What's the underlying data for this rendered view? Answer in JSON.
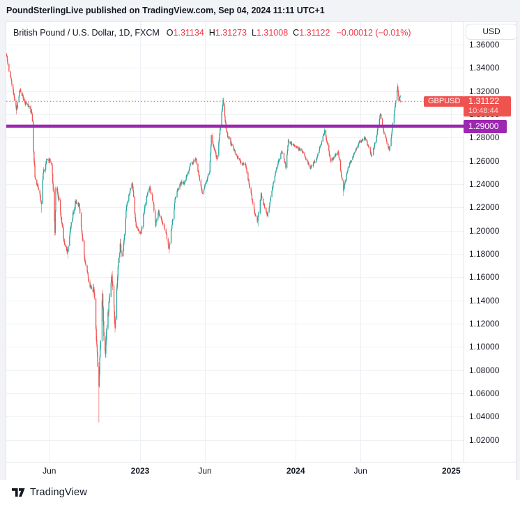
{
  "header": {
    "caption": "PoundSterlingLive published on TradingView.com, Sep 04, 2024 11:11 UTC+1"
  },
  "legend": {
    "title": "British Pound / U.S. Dollar, 1D, FXCM",
    "ohlc": [
      {
        "k": "O",
        "v": "1.31134"
      },
      {
        "k": "H",
        "v": "1.31273"
      },
      {
        "k": "L",
        "v": "1.31008"
      },
      {
        "k": "C",
        "v": "1.31122"
      }
    ],
    "change": "−0.00012 (−0.01%)"
  },
  "toolbar": {
    "currency_label": "USD"
  },
  "price_scale": {
    "tick_labels": [
      "1.36000",
      "1.34000",
      "1.32000",
      "1.30000",
      "1.28000",
      "1.26000",
      "1.24000",
      "1.22000",
      "1.20000",
      "1.18000",
      "1.16000",
      "1.14000",
      "1.12000",
      "1.10000",
      "1.08000",
      "1.06000",
      "1.04000",
      "1.02000"
    ],
    "current_price_label": "1.31122",
    "countdown": "10:48:44",
    "level_label": "1.29000"
  },
  "time_scale": {
    "labels": [
      {
        "text": "Jun",
        "date": "2022-06-01",
        "bold": false
      },
      {
        "text": "2023",
        "date": "2023-01-01",
        "bold": true
      },
      {
        "text": "Jun",
        "date": "2023-06-01",
        "bold": false
      },
      {
        "text": "2024",
        "date": "2024-01-01",
        "bold": true
      },
      {
        "text": "Jun",
        "date": "2024-06-01",
        "bold": false
      },
      {
        "text": "2025",
        "date": "2025-01-01",
        "bold": true
      }
    ]
  },
  "price_line_flag": "GBPUSD",
  "footer": {
    "brand": "TradingView"
  },
  "chart_data": {
    "type": "candlestick",
    "symbol": "GBPUSD",
    "description": "British Pound / U.S. Dollar",
    "interval": "1D",
    "exchange": "FXCM",
    "last": {
      "open": 1.31134,
      "high": 1.31273,
      "low": 1.31008,
      "close": 1.31122,
      "change": -0.00012,
      "change_pct": -0.01
    },
    "current_price": 1.31122,
    "horizontal_level": 1.29,
    "y_axis": {
      "top_gridline": 1.36,
      "bottom_gridline": 1.02,
      "step": 0.02,
      "visible_min": 1.0,
      "visible_max": 1.38,
      "grid": true
    },
    "x_range": {
      "start": "2022-02-22",
      "end": "2024-09-04",
      "blank_right_until": "2025-01-15"
    },
    "colors": {
      "up": "#26a69a",
      "down": "#ef5350",
      "price_line": "#ef5350",
      "level_line": "#9c27b0",
      "grid": "#edf0f5",
      "axis_text": "#131722",
      "legend_value_red": "#f23645"
    },
    "anchors": [
      [
        "2022-02-22",
        1.352
      ],
      [
        "2022-03-01",
        1.333
      ],
      [
        "2022-03-10",
        1.315
      ],
      [
        "2022-03-15",
        1.303
      ],
      [
        "2022-03-23",
        1.321
      ],
      [
        "2022-04-05",
        1.31
      ],
      [
        "2022-04-14",
        1.307
      ],
      [
        "2022-04-21",
        1.301
      ],
      [
        "2022-04-28",
        1.246
      ],
      [
        "2022-05-09",
        1.232
      ],
      [
        "2022-05-13",
        1.224
      ],
      [
        "2022-05-17",
        1.249
      ],
      [
        "2022-05-27",
        1.263
      ],
      [
        "2022-06-07",
        1.258
      ],
      [
        "2022-06-14",
        1.199
      ],
      [
        "2022-06-16",
        1.236
      ],
      [
        "2022-06-24",
        1.227
      ],
      [
        "2022-07-05",
        1.19
      ],
      [
        "2022-07-14",
        1.182
      ],
      [
        "2022-07-19",
        1.2
      ],
      [
        "2022-08-01",
        1.225
      ],
      [
        "2022-08-10",
        1.222
      ],
      [
        "2022-08-23",
        1.176
      ],
      [
        "2022-09-05",
        1.152
      ],
      [
        "2022-09-13",
        1.149
      ],
      [
        "2022-09-16",
        1.141
      ],
      [
        "2022-09-23",
        1.085
      ],
      [
        "2022-09-26",
        1.068
      ],
      [
        "2022-09-28",
        1.088
      ],
      [
        "2022-10-04",
        1.146
      ],
      [
        "2022-10-07",
        1.109
      ],
      [
        "2022-10-11",
        1.096
      ],
      [
        "2022-10-14",
        1.118
      ],
      [
        "2022-10-26",
        1.162
      ],
      [
        "2022-11-03",
        1.116
      ],
      [
        "2022-11-10",
        1.17
      ],
      [
        "2022-11-15",
        1.187
      ],
      [
        "2022-11-21",
        1.179
      ],
      [
        "2022-12-01",
        1.225
      ],
      [
        "2022-12-13",
        1.242
      ],
      [
        "2022-12-22",
        1.203
      ],
      [
        "2023-01-03",
        1.197
      ],
      [
        "2023-01-13",
        1.223
      ],
      [
        "2023-01-23",
        1.238
      ],
      [
        "2023-02-02",
        1.222
      ],
      [
        "2023-02-07",
        1.205
      ],
      [
        "2023-02-14",
        1.217
      ],
      [
        "2023-02-27",
        1.202
      ],
      [
        "2023-03-08",
        1.184
      ],
      [
        "2023-03-23",
        1.229
      ],
      [
        "2023-04-03",
        1.241
      ],
      [
        "2023-04-14",
        1.241
      ],
      [
        "2023-04-28",
        1.257
      ],
      [
        "2023-05-10",
        1.262
      ],
      [
        "2023-05-25",
        1.232
      ],
      [
        "2023-06-12",
        1.251
      ],
      [
        "2023-06-16",
        1.282
      ],
      [
        "2023-06-29",
        1.261
      ],
      [
        "2023-07-13",
        1.313
      ],
      [
        "2023-07-21",
        1.285
      ],
      [
        "2023-07-27",
        1.279
      ],
      [
        "2023-08-10",
        1.268
      ],
      [
        "2023-08-25",
        1.258
      ],
      [
        "2023-09-05",
        1.256
      ],
      [
        "2023-09-26",
        1.216
      ],
      [
        "2023-10-03",
        1.208
      ],
      [
        "2023-10-11",
        1.231
      ],
      [
        "2023-10-26",
        1.213
      ],
      [
        "2023-11-14",
        1.25
      ],
      [
        "2023-11-29",
        1.269
      ],
      [
        "2023-12-08",
        1.255
      ],
      [
        "2023-12-14",
        1.277
      ],
      [
        "2023-12-28",
        1.273
      ],
      [
        "2024-01-17",
        1.268
      ],
      [
        "2024-02-05",
        1.254
      ],
      [
        "2024-02-20",
        1.262
      ],
      [
        "2024-03-08",
        1.286
      ],
      [
        "2024-03-22",
        1.26
      ],
      [
        "2024-04-09",
        1.268
      ],
      [
        "2024-04-22",
        1.235
      ],
      [
        "2024-05-03",
        1.255
      ],
      [
        "2024-05-28",
        1.276
      ],
      [
        "2024-06-12",
        1.28
      ],
      [
        "2024-06-27",
        1.264
      ],
      [
        "2024-07-08",
        1.281
      ],
      [
        "2024-07-17",
        1.301
      ],
      [
        "2024-07-25",
        1.285
      ],
      [
        "2024-08-08",
        1.269
      ],
      [
        "2024-08-20",
        1.303
      ],
      [
        "2024-08-27",
        1.323
      ],
      [
        "2024-08-30",
        1.3127
      ],
      [
        "2024-09-03",
        1.3145
      ],
      [
        "2024-09-04",
        1.31122
      ]
    ],
    "key_extremes": [
      [
        "2022-03-15",
        "low",
        1.3
      ],
      [
        "2022-05-13",
        "low",
        1.2156
      ],
      [
        "2022-07-14",
        "low",
        1.176
      ],
      [
        "2022-09-26",
        "low",
        1.035
      ],
      [
        "2022-10-11",
        "low",
        1.0923
      ],
      [
        "2023-03-08",
        "low",
        1.1803
      ],
      [
        "2023-07-14",
        "high",
        1.3144
      ],
      [
        "2023-10-04",
        "low",
        1.2037
      ],
      [
        "2024-04-22",
        "low",
        1.2299
      ],
      [
        "2024-08-27",
        "high",
        1.3266
      ]
    ]
  }
}
